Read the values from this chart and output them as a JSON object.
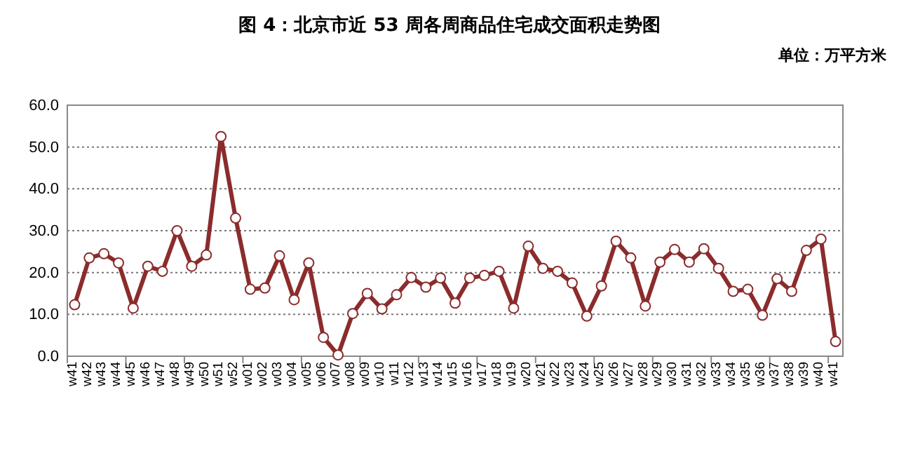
{
  "chart_data": {
    "type": "line",
    "title": "图 4：北京市近 53 周各周商品住宅成交面积走势图",
    "annotations": [
      "单位：万平方米"
    ],
    "categories": [
      "w41",
      "w42",
      "w43",
      "w44",
      "w45",
      "w46",
      "w47",
      "w48",
      "w49",
      "w50",
      "w51",
      "w52",
      "w01",
      "w02",
      "w03",
      "w04",
      "w05",
      "w06",
      "w07",
      "w08",
      "w09",
      "w10",
      "w11",
      "w12",
      "w13",
      "w14",
      "w15",
      "w16",
      "w17",
      "w18",
      "w19",
      "w20",
      "w21",
      "w22",
      "w23",
      "w24",
      "w25",
      "w26",
      "w27",
      "w28",
      "w29",
      "w30",
      "w31",
      "w32",
      "w33",
      "w34",
      "w35",
      "w36",
      "w37",
      "w38",
      "w39",
      "w40",
      "w41"
    ],
    "series": [
      {
        "color": "#8b2c2c",
        "values": [
          12.3,
          23.5,
          24.5,
          22.3,
          11.5,
          21.5,
          20.3,
          30,
          21.5,
          24.2,
          52.5,
          33,
          16,
          16.3,
          24,
          13.5,
          22.3,
          4.5,
          0.3,
          10.2,
          15,
          11.3,
          14.7,
          18.8,
          16.5,
          18.7,
          12.7,
          18.7,
          19.3,
          20.3,
          11.5,
          26.3,
          21,
          20.3,
          17.5,
          9.6,
          16.8,
          27.5,
          23.5,
          12,
          22.5,
          25.5,
          22.5,
          25.7,
          21,
          15.5,
          16,
          9.8,
          18.5,
          15.5,
          25.3,
          28,
          3.5
        ]
      }
    ],
    "ylim": [
      0,
      60
    ],
    "yticks": [
      {
        "value": 0,
        "label": "0.0"
      },
      {
        "value": 10,
        "label": "10.0"
      },
      {
        "value": 20,
        "label": "20.0"
      },
      {
        "value": 30,
        "label": "30.0"
      },
      {
        "value": 40,
        "label": "40.0"
      },
      {
        "value": 50,
        "label": "50.0"
      },
      {
        "value": 60,
        "label": "60.0"
      }
    ],
    "grid": "y",
    "marker": "circle",
    "line_style": "solid"
  }
}
